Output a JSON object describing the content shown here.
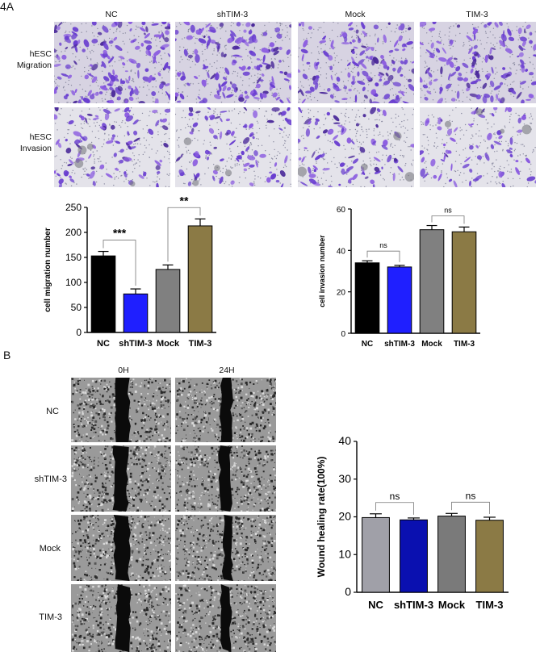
{
  "panel_a": {
    "label": "4A",
    "columns": [
      "NC",
      "shTIM-3",
      "Mock",
      "TIM-3"
    ],
    "rows": [
      {
        "line1": "hESC",
        "line2": "Migration"
      },
      {
        "line1": "hESC",
        "line2": "Invasion"
      }
    ]
  },
  "panel_b": {
    "label": "B",
    "columns": [
      "0H",
      "24H"
    ],
    "rows": [
      "NC",
      "shTIM-3",
      "Mock",
      "TIM-3"
    ]
  },
  "chart_data": [
    {
      "type": "bar",
      "categories": [
        "NC",
        "shTIM-3",
        "Mock",
        "TIM-3"
      ],
      "values": [
        153,
        77,
        126,
        213
      ],
      "errors": [
        9,
        10,
        9,
        14
      ],
      "colors": [
        "#000000",
        "#1f1fff",
        "#808080",
        "#8b7a45"
      ],
      "ylabel": "cell migration number",
      "ylim": [
        0,
        250
      ],
      "yticks": [
        0,
        50,
        100,
        150,
        200,
        250
      ],
      "annotations": [
        {
          "from": 0,
          "to": 1,
          "text": "***"
        },
        {
          "from": 2,
          "to": 3,
          "text": "**"
        }
      ]
    },
    {
      "type": "bar",
      "categories": [
        "NC",
        "shTIM-3",
        "Mock",
        "TIM-3"
      ],
      "values": [
        34,
        32,
        50,
        49
      ],
      "errors": [
        1,
        0.8,
        2,
        2.3
      ],
      "colors": [
        "#000000",
        "#1f1fff",
        "#808080",
        "#8b7a45"
      ],
      "ylabel": "cell invasion number",
      "ylim": [
        0,
        60
      ],
      "yticks": [
        0,
        20,
        40,
        60
      ],
      "annotations": [
        {
          "from": 0,
          "to": 1,
          "text": "ns"
        },
        {
          "from": 2,
          "to": 3,
          "text": "ns"
        }
      ]
    },
    {
      "type": "bar",
      "categories": [
        "NC",
        "shTIM-3",
        "Mock",
        "TIM-3"
      ],
      "values": [
        19.8,
        19.2,
        20.2,
        19.1
      ],
      "errors": [
        1.0,
        0.5,
        0.7,
        0.8
      ],
      "colors": [
        "#a0a0a8",
        "#0a10b0",
        "#7a7a7a",
        "#8b7a45"
      ],
      "ylabel": "Wound healing rate(100%)",
      "ylim": [
        0,
        40
      ],
      "yticks": [
        0,
        10,
        20,
        30,
        40
      ],
      "annotations": [
        {
          "from": 0,
          "to": 1,
          "text": "ns"
        },
        {
          "from": 2,
          "to": 3,
          "text": "ns"
        }
      ]
    }
  ]
}
